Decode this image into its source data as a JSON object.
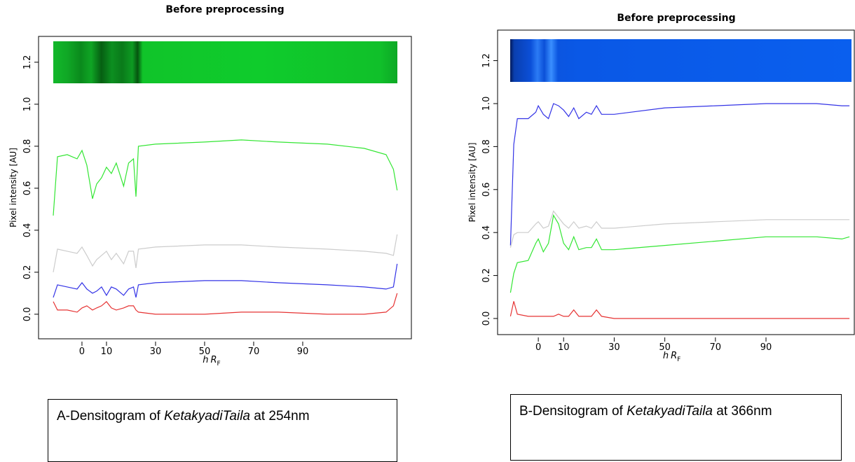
{
  "chart_data": [
    {
      "type": "line",
      "title": "Before preprocessing",
      "ylabel": "Pixel intensity [AU]",
      "xlabel": {
        "italic": "h",
        "main": "R",
        "sub": "F"
      },
      "xlim": [
        -17.7,
        134.3
      ],
      "ylim": [
        -0.117,
        1.323
      ],
      "xticks": [
        0,
        10,
        30,
        50,
        70,
        90
      ],
      "yticks": [
        {
          "value": 0,
          "label": "0.0"
        },
        {
          "value": 0.2,
          "label": "0.2"
        },
        {
          "value": 0.4,
          "label": "0.4"
        },
        {
          "value": 0.6,
          "label": "0.6"
        },
        {
          "value": 0.8,
          "label": "0.8"
        },
        {
          "value": 1.0,
          "label": "1.0"
        },
        {
          "value": 1.2,
          "label": "1.2"
        }
      ],
      "x": [
        -11.7,
        -10,
        -6,
        -2,
        0,
        2,
        4.3,
        6,
        8,
        10,
        12,
        14,
        17,
        19,
        21,
        22,
        23,
        30,
        50,
        65,
        80,
        100,
        115,
        124,
        127,
        128.5
      ],
      "series": [
        {
          "color": "#33e633",
          "values": [
            0.47,
            0.75,
            0.76,
            0.74,
            0.78,
            0.71,
            0.55,
            0.62,
            0.65,
            0.7,
            0.67,
            0.72,
            0.61,
            0.72,
            0.74,
            0.56,
            0.8,
            0.81,
            0.82,
            0.83,
            0.82,
            0.81,
            0.79,
            0.76,
            0.69,
            0.59
          ]
        },
        {
          "color": "#cccccc",
          "values": [
            0.2,
            0.31,
            0.3,
            0.29,
            0.32,
            0.28,
            0.23,
            0.26,
            0.28,
            0.3,
            0.26,
            0.29,
            0.24,
            0.3,
            0.3,
            0.22,
            0.31,
            0.32,
            0.33,
            0.33,
            0.32,
            0.31,
            0.3,
            0.29,
            0.28,
            0.38
          ]
        },
        {
          "color": "#3333e6",
          "values": [
            0.08,
            0.14,
            0.13,
            0.12,
            0.15,
            0.12,
            0.1,
            0.11,
            0.13,
            0.09,
            0.13,
            0.12,
            0.09,
            0.12,
            0.13,
            0.08,
            0.14,
            0.15,
            0.16,
            0.16,
            0.15,
            0.14,
            0.13,
            0.12,
            0.13,
            0.24
          ]
        },
        {
          "color": "#e63333",
          "values": [
            0.06,
            0.02,
            0.02,
            0.01,
            0.03,
            0.04,
            0.02,
            0.03,
            0.04,
            0.06,
            0.03,
            0.02,
            0.03,
            0.04,
            0.04,
            0.02,
            0.01,
            0.0,
            0.0,
            0.01,
            0.01,
            0.0,
            0.0,
            0.01,
            0.04,
            0.1
          ]
        }
      ]
    },
    {
      "type": "line",
      "title": "Before preprocessing",
      "ylabel": "Pixel intensity [AU]",
      "xlabel": {
        "italic": "h",
        "main": "R",
        "sub": "F"
      },
      "xlim": [
        -16.1,
        124.9
      ],
      "ylim": [
        -0.075,
        1.342
      ],
      "xticks": [
        0,
        10,
        30,
        50,
        70,
        90
      ],
      "yticks": [
        {
          "value": 0,
          "label": "0.0"
        },
        {
          "value": 0.2,
          "label": "0.2"
        },
        {
          "value": 0.4,
          "label": "0.4"
        },
        {
          "value": 0.6,
          "label": "0.6"
        },
        {
          "value": 0.8,
          "label": "0.8"
        },
        {
          "value": 1.0,
          "label": "1.0"
        },
        {
          "value": 1.2,
          "label": "1.2"
        }
      ],
      "x": [
        -11,
        -9.7,
        -8.3,
        -4,
        -1,
        0,
        2,
        4,
        6,
        8,
        10,
        12,
        14,
        16,
        19,
        21,
        23,
        25,
        30,
        50,
        70,
        90,
        110,
        120,
        123
      ],
      "series": [
        {
          "color": "#3333e6",
          "values": [
            0.34,
            0.81,
            0.93,
            0.93,
            0.96,
            0.99,
            0.95,
            0.93,
            1.0,
            0.99,
            0.97,
            0.94,
            0.98,
            0.93,
            0.96,
            0.95,
            0.99,
            0.95,
            0.95,
            0.98,
            0.99,
            1.0,
            1.0,
            0.99,
            0.99
          ]
        },
        {
          "color": "#cccccc",
          "values": [
            0.33,
            0.39,
            0.4,
            0.4,
            0.44,
            0.45,
            0.42,
            0.43,
            0.5,
            0.47,
            0.44,
            0.42,
            0.45,
            0.42,
            0.43,
            0.42,
            0.45,
            0.42,
            0.42,
            0.44,
            0.45,
            0.46,
            0.46,
            0.46,
            0.46
          ]
        },
        {
          "color": "#33e633",
          "values": [
            0.12,
            0.21,
            0.26,
            0.27,
            0.35,
            0.37,
            0.31,
            0.35,
            0.48,
            0.44,
            0.35,
            0.32,
            0.38,
            0.32,
            0.33,
            0.33,
            0.37,
            0.32,
            0.32,
            0.34,
            0.36,
            0.38,
            0.38,
            0.37,
            0.38
          ]
        },
        {
          "color": "#e63333",
          "values": [
            0.01,
            0.08,
            0.02,
            0.01,
            0.01,
            0.01,
            0.01,
            0.01,
            0.01,
            0.02,
            0.01,
            0.01,
            0.04,
            0.01,
            0.01,
            0.01,
            0.04,
            0.01,
            0.0,
            0.0,
            0.0,
            0.0,
            0.0,
            0.0,
            0.0
          ]
        }
      ]
    }
  ],
  "captions": [
    {
      "before": "A-Densitogram of",
      "italic": "KetakyadiTaila",
      "after": "at 254nm"
    },
    {
      "before": "B-Densitogram of",
      "italic": "KetakyadiTaila",
      "after": "at 366nm"
    }
  ]
}
